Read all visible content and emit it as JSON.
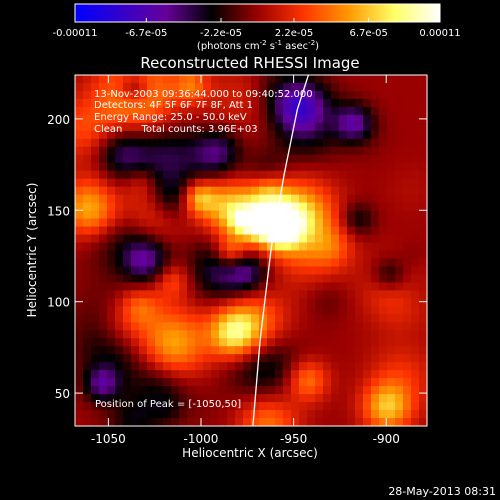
{
  "chart_data": {
    "type": "heatmap",
    "title": "Reconstructed RHESSI Image",
    "xlabel": "Heliocentric X (arcsec)",
    "ylabel": "Heliocentric Y (arcsec)",
    "xlim": [
      -1068,
      -878
    ],
    "ylim": [
      32,
      224
    ],
    "x_ticks": [
      -1050,
      -1000,
      -950,
      -900
    ],
    "y_ticks": [
      50,
      100,
      150,
      200
    ],
    "colorbar": {
      "range": [
        -0.00011,
        0.00011
      ],
      "ticks": [
        "-0.00011",
        "-6.7e-05",
        "-2.2e-05",
        "2.2e-05",
        "6.7e-05",
        "0.00011"
      ],
      "tick_values": [
        -0.00011,
        -6.7e-05,
        -2.2e-05,
        2.2e-05,
        6.7e-05,
        0.00011
      ],
      "units_parts": [
        "(photons cm",
        "-2",
        " s",
        "-1",
        " asec",
        "-2",
        ")"
      ],
      "colors": [
        "#0000ff",
        "#3300cc",
        "#660099",
        "#000000",
        "#990000",
        "#ff3300",
        "#ff9900",
        "#ffff66",
        "#ffffff"
      ]
    },
    "annotations": [
      "13-Nov-2003 09:36:44.000 to 09:40:52.000",
      "Detectors: 4F 5F 6F 7F 8F, Att 1",
      "Energy Range: 25.0 - 50.0 keV",
      "Clean      Total counts: 3.96E+03"
    ],
    "peak_label": "Position of Peak = [-1050,50]",
    "limb_line": {
      "x": [
        -972,
        -968,
        -962,
        -955,
        -948,
        -942
      ],
      "y": [
        32,
        80,
        130,
        170,
        205,
        224
      ]
    },
    "footer_date": "28-May-2013 08:31",
    "grid": false
  }
}
